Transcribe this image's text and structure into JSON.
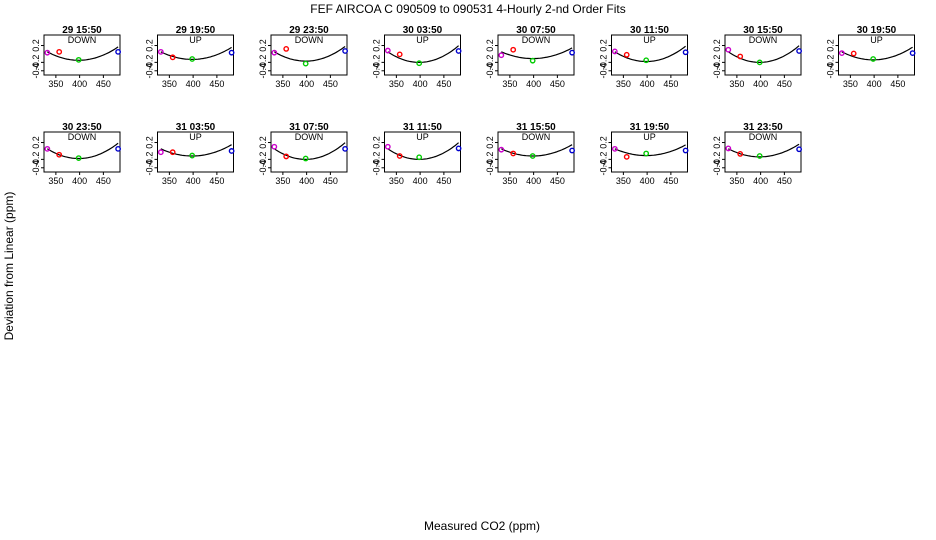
{
  "chart_data": {
    "type": "scatter",
    "title": "FEF   AIRCOA C   090509 to 090531   4-Hourly 2-nd Order Fits",
    "xlabel": "Measured CO2 (ppm)",
    "ylabel": "Deviation from Linear (ppm)",
    "xlim": [
      325,
      485
    ],
    "ylim": [
      -0.5,
      0.45
    ],
    "x_ticks": [
      350,
      400,
      450
    ],
    "x_tick_labels": [
      "350",
      "400",
      "450"
    ],
    "y_ticks": [
      0.2,
      -0.2,
      -0.4
    ],
    "y_tick_labels": [
      "0.2",
      "-0.2",
      "-0.4"
    ],
    "standards_x": [
      332,
      357,
      398,
      481
    ],
    "standard_colors": [
      "#cc00cc",
      "#ff0000",
      "#00cc00",
      "#0000cc"
    ],
    "fit_color": "#000000",
    "panels": [
      {
        "label": "29 15:50",
        "direction": "DOWN",
        "fit": [
          0.05,
          -0.15
        ],
        "points": [
          0.03,
          0.05,
          -0.14,
          0.05
        ]
      },
      {
        "label": "29 19:50",
        "direction": "UP",
        "fit": [
          0.05,
          -0.13
        ],
        "points": [
          0.05,
          -0.08,
          -0.12,
          0.03
        ]
      },
      {
        "label": "29 23:50",
        "direction": "DOWN",
        "fit": [
          0.05,
          -0.17
        ],
        "points": [
          0.03,
          0.12,
          -0.23,
          0.07
        ]
      },
      {
        "label": "30 03:50",
        "direction": "UP",
        "fit": [
          0.05,
          -0.2
        ],
        "points": [
          0.08,
          -0.01,
          -0.22,
          0.07
        ]
      },
      {
        "label": "30 07:50",
        "direction": "DOWN",
        "fit": [
          0.05,
          -0.11
        ],
        "points": [
          -0.03,
          0.1,
          -0.16,
          0.03
        ]
      },
      {
        "label": "30 11:50",
        "direction": "UP",
        "fit": [
          0.05,
          -0.18
        ],
        "points": [
          0.06,
          -0.02,
          -0.15,
          0.04
        ]
      },
      {
        "label": "30 15:50",
        "direction": "DOWN",
        "fit": [
          0.05,
          -0.2
        ],
        "points": [
          0.1,
          -0.06,
          -0.2,
          0.07
        ]
      },
      {
        "label": "30 19:50",
        "direction": "UP",
        "fit": [
          0.05,
          -0.14
        ],
        "points": [
          0.02,
          0.01,
          -0.12,
          0.02
        ]
      },
      {
        "label": "30 23:50",
        "direction": "DOWN",
        "fit": [
          0.05,
          -0.18
        ],
        "points": [
          0.05,
          -0.09,
          -0.17,
          0.05
        ]
      },
      {
        "label": "31 03:50",
        "direction": "UP",
        "fit": [
          0.05,
          -0.12
        ],
        "points": [
          -0.03,
          -0.03,
          -0.11,
          0.0
        ]
      },
      {
        "label": "31 07:50",
        "direction": "DOWN",
        "fit": [
          0.05,
          -0.2
        ],
        "points": [
          0.1,
          -0.13,
          -0.18,
          0.05
        ]
      },
      {
        "label": "31 11:50",
        "direction": "UP",
        "fit": [
          0.05,
          -0.2
        ],
        "points": [
          0.1,
          -0.12,
          -0.15,
          0.06
        ]
      },
      {
        "label": "31 15:50",
        "direction": "DOWN",
        "fit": [
          0.05,
          -0.12
        ],
        "points": [
          0.03,
          -0.06,
          -0.12,
          0.01
        ]
      },
      {
        "label": "31 19:50",
        "direction": "UP",
        "fit": [
          0.05,
          -0.11
        ],
        "points": [
          0.05,
          -0.14,
          -0.06,
          0.01
        ]
      },
      {
        "label": "31 23:50",
        "direction": "DOWN",
        "fit": [
          0.05,
          -0.14
        ],
        "points": [
          0.06,
          -0.07,
          -0.12,
          0.04
        ]
      }
    ]
  }
}
